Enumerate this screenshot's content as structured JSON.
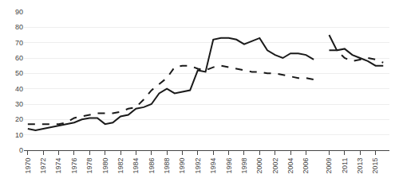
{
  "chart_data": {
    "type": "line",
    "x": [
      1970,
      1971,
      1972,
      1973,
      1974,
      1975,
      1976,
      1977,
      1978,
      1979,
      1980,
      1981,
      1982,
      1983,
      1984,
      1985,
      1986,
      1987,
      1988,
      1989,
      1990,
      1991,
      1992,
      1993,
      1994,
      1995,
      1996,
      1997,
      1998,
      1999,
      2000,
      2001,
      2002,
      2003,
      2004,
      2005,
      2006,
      2007,
      2008,
      2009,
      2010,
      2011,
      2012,
      2013,
      2014,
      2015,
      2016
    ],
    "series": [
      {
        "color": "#1a1a1a",
        "line_style": "solid",
        "values": [
          14,
          13,
          14,
          15,
          16,
          17,
          18,
          20,
          21,
          21,
          17,
          18,
          22,
          23,
          27,
          28,
          30,
          37,
          40,
          37,
          38,
          39,
          52,
          51,
          72,
          73,
          73,
          72,
          69,
          71,
          73,
          65,
          62,
          60,
          63,
          63,
          62,
          59,
          null,
          75,
          65,
          66,
          62,
          60,
          58,
          55,
          55
        ]
      },
      {
        "color": "#1a1a1a",
        "line_style": "dashed",
        "values": [
          17,
          17,
          17,
          17,
          17,
          18,
          21,
          22,
          23,
          24,
          24,
          24,
          25,
          27,
          28,
          33,
          39,
          43,
          47,
          54,
          55,
          55,
          53,
          52,
          54,
          55,
          54,
          53,
          52,
          51,
          51,
          50,
          50,
          49,
          48,
          47,
          47,
          46,
          null,
          65,
          65,
          60,
          58,
          59,
          60,
          59,
          57
        ]
      }
    ],
    "xlim": [
      1969.5,
      2016.8
    ],
    "xticks": [
      1970,
      1972,
      1974,
      1976,
      1978,
      1980,
      1982,
      1984,
      1986,
      1988,
      1990,
      1992,
      1994,
      1996,
      1998,
      2000,
      2002,
      2004,
      2006,
      2009,
      2011,
      2013,
      2015
    ],
    "ylim": [
      0,
      90
    ],
    "yticks": [
      0,
      10,
      20,
      30,
      40,
      50,
      60,
      70,
      80,
      90
    ],
    "grid": "y"
  }
}
